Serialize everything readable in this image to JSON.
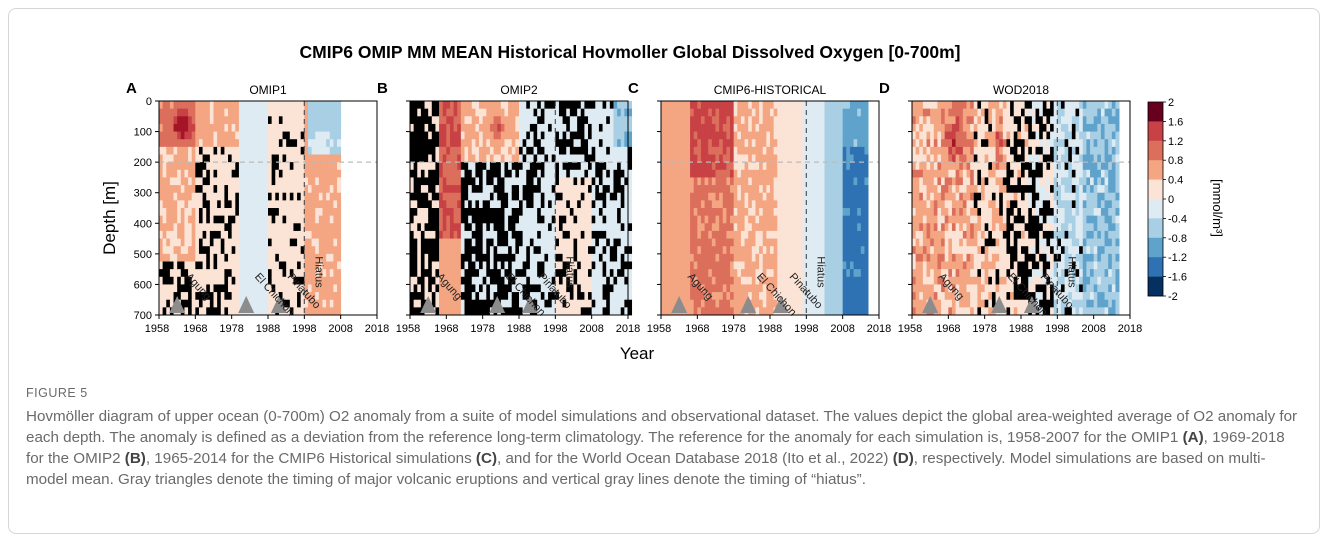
{
  "figure": {
    "title": "CMIP6 OMIP MM MEAN Historical Hovmoller Global Dissolved Oxygen [0-700m]",
    "ylabel": "Depth [m]",
    "xlabel": "Year",
    "colorbar_label": "[mmol/m³]",
    "colorbar_ticks": [
      "2",
      "1.6",
      "1.2",
      "0.8",
      "0.4",
      "0",
      "-0.4",
      "-0.8",
      "-1.2",
      "-1.6",
      "-2"
    ],
    "colors": {
      "2": "#67001f",
      "1.6": "#a51528",
      "1.2": "#c84145",
      "0.8": "#dc6f5c",
      "0.4": "#f4a582",
      "0": "#fbe3d5",
      "-0.4": "#deebf3",
      "-0.8": "#a8cfe4",
      "-1.2": "#5fa3cc",
      "-1.6": "#2f72b3",
      "-2": "#053061"
    },
    "volcano_labels": [
      "Agung",
      "El Chichon",
      "Pinatubo"
    ],
    "hiatus_label": "Hiatus"
  },
  "chart_data": [
    {
      "type": "heatmap",
      "letter": "A",
      "title": "OMIP1",
      "xlim": [
        1958,
        2018
      ],
      "ylim": [
        700,
        0
      ],
      "xticks": [
        "1958",
        "1968",
        "1978",
        "1988",
        "1998",
        "2008",
        "2018"
      ],
      "yticks": [
        "0",
        "100",
        "200",
        "300",
        "400",
        "500",
        "600",
        "700"
      ],
      "data_years": [
        1958,
        2007
      ],
      "volcano_years": [
        1963,
        1982,
        1991
      ],
      "hiatus_year": 1998,
      "reference_depth": 200
    },
    {
      "type": "heatmap",
      "letter": "B",
      "title": "OMIP2",
      "xlim": [
        1958,
        2018
      ],
      "ylim": [
        700,
        0
      ],
      "xticks": [
        "1958",
        "1968",
        "1978",
        "1988",
        "1998",
        "2008",
        "2018"
      ],
      "yticks": [],
      "data_years": [
        1958,
        2018
      ],
      "volcano_years": [
        1963,
        1982,
        1991
      ],
      "hiatus_year": 1998,
      "reference_depth": 200
    },
    {
      "type": "heatmap",
      "letter": "C",
      "title": "CMIP6-HISTORICAL",
      "xlim": [
        1958,
        2018
      ],
      "ylim": [
        700,
        0
      ],
      "xticks": [
        "1958",
        "1968",
        "1978",
        "1988",
        "1998",
        "2008",
        "2018"
      ],
      "yticks": [],
      "data_years": [
        1958,
        2014
      ],
      "volcano_years": [
        1963,
        1982,
        1991
      ],
      "hiatus_year": 1998,
      "reference_depth": 200
    },
    {
      "type": "heatmap",
      "letter": "D",
      "title": "WOD2018",
      "xlim": [
        1958,
        2018
      ],
      "ylim": [
        700,
        0
      ],
      "xticks": [
        "1958",
        "1968",
        "1978",
        "1988",
        "1998",
        "2008",
        "2018"
      ],
      "yticks": [],
      "data_years": [
        1958,
        2014
      ],
      "volcano_years": [
        1963,
        1982,
        1991
      ],
      "hiatus_year": 1998,
      "reference_depth": 200
    }
  ],
  "caption": {
    "label": "FIGURE 5",
    "t1": "Hovmöller diagram of upper ocean (0-700m) O2 anomaly from a suite of model simulations and observational dataset. The values depict the global area-weighted average of O2 anomaly for each depth. The anomaly is defined as a deviation from the reference long-term climatology. The reference for the anomaly for each simulation is, 1958-2007 for the OMIP1 ",
    "b1": "(A)",
    "t2": ", 1969-2018 for the OMIP2 ",
    "b2": "(B)",
    "t3": ", 1965-2014 for the CMIP6 Historical simulations ",
    "b3": "(C)",
    "t4": ", and for the World Ocean Database 2018 (Ito et al., 2022) ",
    "b4": "(D)",
    "t5": ", respectively. Model simulations are based on multi-model mean. Gray triangles denote the timing of major volcanic eruptions and vertical gray lines denote the timing of “hiatus”."
  }
}
